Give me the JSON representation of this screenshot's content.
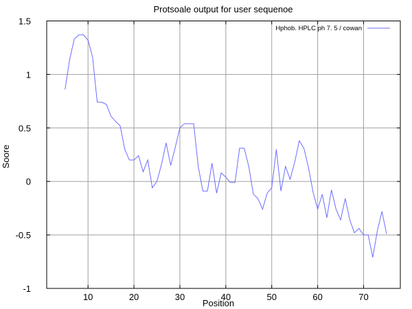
{
  "chart_data": {
    "type": "line",
    "title": "Protsoale output for user sequenoe",
    "xlabel": "Position",
    "ylabel": "Soore",
    "xlim": [
      1,
      78
    ],
    "ylim": [
      -1,
      1.5
    ],
    "xticks": [
      10,
      20,
      30,
      40,
      50,
      60,
      70
    ],
    "yticks": [
      -1,
      -0.5,
      0,
      0.5,
      1,
      1.5
    ],
    "ytick_labels": [
      "-1",
      "-0.5",
      "0",
      "0.5",
      "1",
      "1.5"
    ],
    "grid": true,
    "legend_position": "top-right",
    "series": [
      {
        "name": "Hphob.    HPLC  ph 7.  5   /    cowan",
        "color": "#6b6bff",
        "x": [
          5,
          6,
          7,
          8,
          9,
          10,
          11,
          12,
          13,
          14,
          15,
          16,
          17,
          18,
          19,
          20,
          21,
          22,
          23,
          24,
          25,
          26,
          27,
          28,
          29,
          30,
          31,
          32,
          33,
          34,
          35,
          36,
          37,
          38,
          39,
          40,
          41,
          42,
          43,
          44,
          45,
          46,
          47,
          48,
          49,
          50,
          51,
          52,
          53,
          54,
          55,
          56,
          57,
          58,
          59,
          60,
          61,
          62,
          63,
          64,
          65,
          66,
          67,
          68,
          69,
          70,
          71,
          72,
          73,
          74,
          75
        ],
        "y": [
          0.86,
          1.14,
          1.33,
          1.37,
          1.37,
          1.32,
          1.16,
          0.74,
          0.74,
          0.72,
          0.61,
          0.56,
          0.52,
          0.3,
          0.2,
          0.2,
          0.24,
          0.09,
          0.2,
          -0.06,
          0.0,
          0.16,
          0.36,
          0.15,
          0.32,
          0.5,
          0.54,
          0.54,
          0.54,
          0.14,
          -0.09,
          -0.09,
          0.17,
          -0.11,
          0.08,
          0.04,
          -0.01,
          -0.01,
          0.31,
          0.31,
          0.14,
          -0.12,
          -0.16,
          -0.26,
          -0.11,
          -0.06,
          0.3,
          -0.09,
          0.14,
          0.02,
          0.18,
          0.38,
          0.31,
          0.13,
          -0.1,
          -0.26,
          -0.12,
          -0.34,
          -0.08,
          -0.26,
          -0.36,
          -0.16,
          -0.36,
          -0.48,
          -0.44,
          -0.5,
          -0.5,
          -0.71,
          -0.46,
          -0.28,
          -0.49
        ]
      }
    ]
  }
}
